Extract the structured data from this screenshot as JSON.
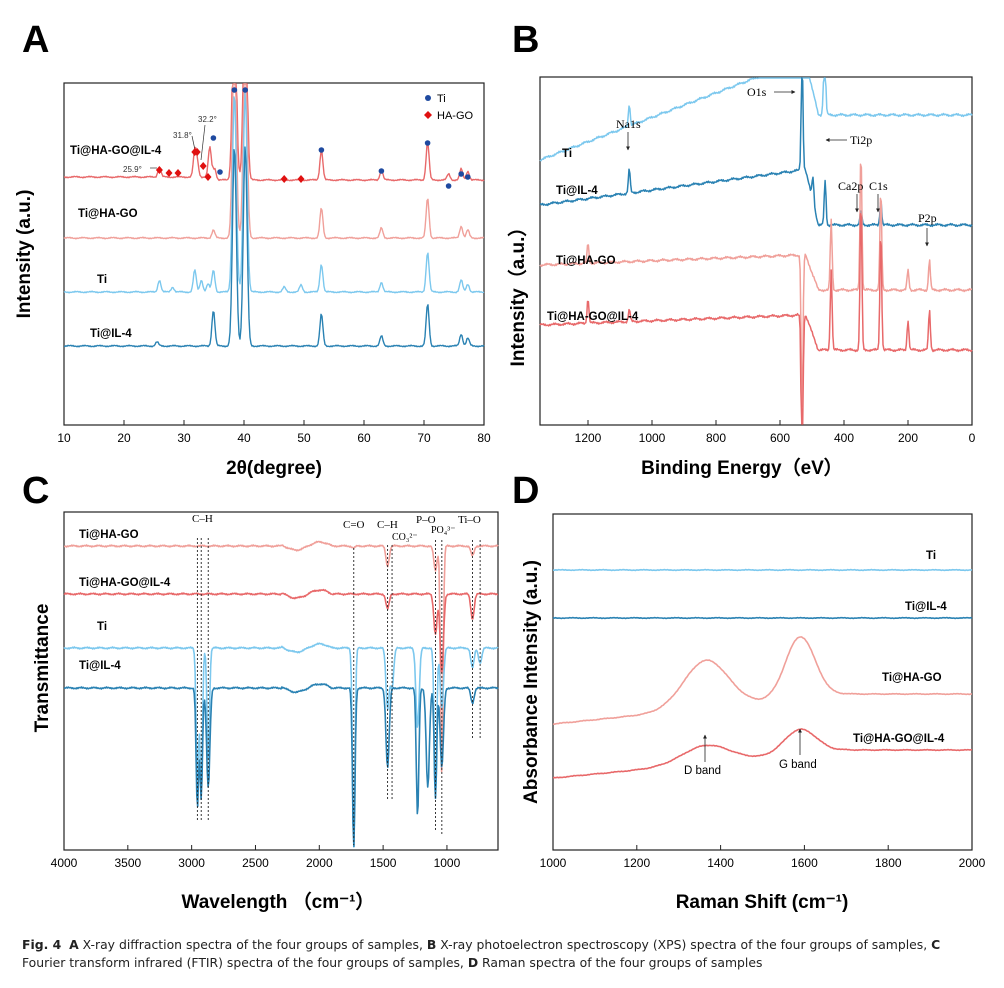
{
  "colors": {
    "ti": "#7cc8ee",
    "til": "#2a82b3",
    "thg": "#f0a09a",
    "thgil": "#e8696a",
    "dot": "#1f4aa0",
    "diamond": "#e01010"
  },
  "panels": {
    "A": "A",
    "B": "B",
    "C": "C",
    "D": "D"
  },
  "caption": {
    "fig": "Fig. 4",
    "A": "A",
    "A_text": " X-ray diffraction spectra of the four groups of samples, ",
    "B": "B",
    "B_text": " X-ray photoelectron spectroscopy (XPS) spectra of the four groups of samples, ",
    "C": "C",
    "C_text": " Fourier transform infrared (FTIR) spectra of the four groups of samples, ",
    "D": "D",
    "D_text": " Raman spectra of the four groups of samples"
  },
  "chart_data": [
    {
      "panel": "A",
      "type": "line",
      "xlabel": "2θ(degree)",
      "ylabel": "Intensity (a.u.)",
      "xlim": [
        10,
        80
      ],
      "xticks": [
        10,
        20,
        30,
        40,
        50,
        60,
        70,
        80
      ],
      "series": [
        {
          "name": "Ti@HA-GO@IL-4",
          "peaks": [
            [
              25.9,
              10
            ],
            [
              31.8,
              25
            ],
            [
              32.2,
              14
            ],
            [
              34.3,
              30
            ],
            [
              35.1,
              12
            ],
            [
              38.4,
              200
            ],
            [
              40.2,
              200
            ],
            [
              52.9,
              30
            ],
            [
              62.9,
              10
            ],
            [
              70.6,
              38
            ],
            [
              74.1,
              6
            ],
            [
              76.2,
              11
            ],
            [
              77.3,
              9
            ]
          ]
        },
        {
          "name": "Ti@HA-GO",
          "peaks": [
            [
              34.9,
              8
            ],
            [
              38.4,
              200
            ],
            [
              40.2,
              200
            ],
            [
              52.9,
              30
            ],
            [
              62.9,
              10
            ],
            [
              70.6,
              40
            ],
            [
              76.2,
              12
            ],
            [
              77.3,
              8
            ]
          ]
        },
        {
          "name": "Ti",
          "peaks": [
            [
              25.9,
              12
            ],
            [
              28.1,
              5
            ],
            [
              31.8,
              22
            ],
            [
              32.9,
              12
            ],
            [
              34.0,
              8
            ],
            [
              34.9,
              22
            ],
            [
              38.4,
              200
            ],
            [
              40.2,
              200
            ],
            [
              46.7,
              5
            ],
            [
              49.5,
              7
            ],
            [
              52.9,
              28
            ],
            [
              62.9,
              10
            ],
            [
              70.6,
              40
            ],
            [
              76.2,
              12
            ],
            [
              77.3,
              8
            ]
          ]
        },
        {
          "name": "Ti@IL-4",
          "peaks": [
            [
              25.5,
              4
            ],
            [
              34.9,
              36
            ],
            [
              38.4,
              200
            ],
            [
              40.2,
              200
            ],
            [
              52.9,
              32
            ],
            [
              62.9,
              10
            ],
            [
              70.6,
              42
            ],
            [
              76.2,
              12
            ],
            [
              77.3,
              8
            ]
          ]
        }
      ],
      "legend": [
        {
          "marker": "circle",
          "label": "Ti"
        },
        {
          "marker": "diamond",
          "label": "HA-GO"
        }
      ],
      "annotations": {
        "a259": "25.9°",
        "a318": "31.8°",
        "a322": "32.2°"
      },
      "ti_markers_2theta": [
        34.9,
        36.0,
        38.4,
        40.2,
        52.9,
        62.9,
        70.6,
        74.1,
        76.2,
        77.3
      ],
      "hago_markers_2theta": [
        25.9,
        27.5,
        29.0,
        31.8,
        32.2,
        33.2,
        34.0,
        46.7,
        49.5
      ]
    },
    {
      "panel": "B",
      "type": "line",
      "xlabel": "Binding Energy（eV）",
      "ylabel": "Intensity（a.u.）",
      "xlim": [
        1350,
        0
      ],
      "xticks": [
        1200,
        1000,
        800,
        600,
        400,
        200,
        0
      ],
      "series": [
        {
          "name": "Ti"
        },
        {
          "name": "Ti@IL-4"
        },
        {
          "name": "Ti@HA-GO"
        },
        {
          "name": "Ti@HA-GO@IL-4"
        }
      ],
      "peak_labels": {
        "o1s": "O1s",
        "na1s": "Na1s",
        "ti2p": "Ti2p",
        "ca2p": "Ca2p",
        "c1s": "C1s",
        "p2p": "P2p"
      },
      "peak_positions_eV": {
        "O1s": 531,
        "Na1s": 1071,
        "Ti2p": 459,
        "Ca2p": 347,
        "C1s": 285,
        "P2p": 133
      }
    },
    {
      "panel": "C",
      "type": "line",
      "xlabel": "Wavelength （cm⁻¹）",
      "ylabel": "Transmittance",
      "xlim": [
        4000,
        600
      ],
      "xticks": [
        4000,
        3500,
        3000,
        2500,
        2000,
        1500,
        1000
      ],
      "series": [
        {
          "name": "Ti@HA-GO"
        },
        {
          "name": "Ti@HA-GO@IL-4"
        },
        {
          "name": "Ti"
        },
        {
          "name": "Ti@IL-4"
        }
      ],
      "band_labels": {
        "ch1": "C–H",
        "co": "C=O",
        "ch2": "C–H",
        "co3": "CO₃²⁻",
        "po": "P–O",
        "po4": "PO₄³⁻",
        "tio": "Ti–O"
      },
      "band_positions_cm": {
        "C–H (stretch)": [
          2955,
          2925,
          2870
        ],
        "C=O": 1730,
        "C–H (bend)": [
          1465,
          1430
        ],
        "P–O": [
          1090,
          1040
        ],
        "Ti–O": [
          800,
          740
        ]
      }
    },
    {
      "panel": "D",
      "type": "line",
      "xlabel": "Raman Shift (cm⁻¹)",
      "ylabel": "Absorbance Intensity (a.u.)",
      "xlim": [
        1000,
        2000
      ],
      "xticks": [
        1000,
        1200,
        1400,
        1600,
        1800,
        2000
      ],
      "series": [
        {
          "name": "Ti"
        },
        {
          "name": "Ti@IL-4"
        },
        {
          "name": "Ti@HA-GO"
        },
        {
          "name": "Ti@HA-GO@IL-4"
        }
      ],
      "band_labels": {
        "d": "D band",
        "g": "G band"
      },
      "band_positions_cm": {
        "D band": 1360,
        "G band": 1590
      }
    }
  ]
}
